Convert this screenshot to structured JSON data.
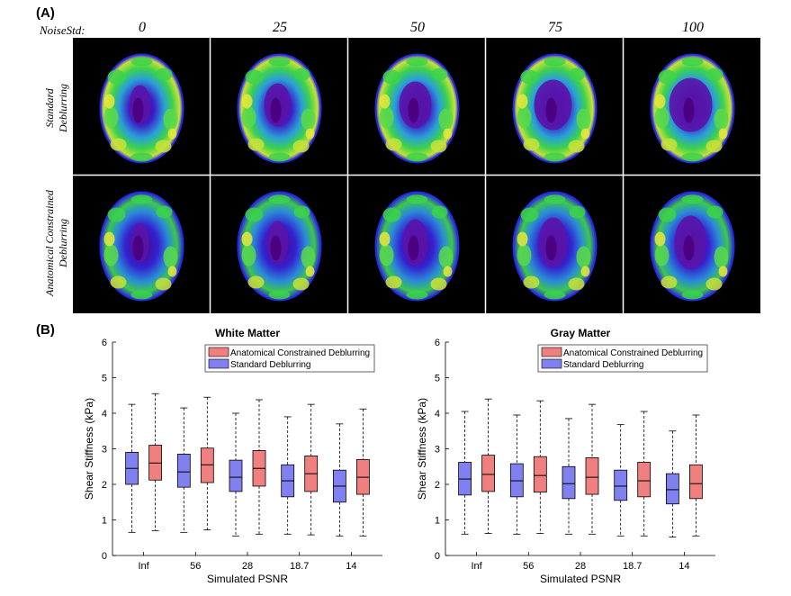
{
  "panel_a_label": "(A)",
  "panel_b_label": "(B)",
  "noise_label": "NoiseStd:",
  "noise_levels": [
    "0",
    "25",
    "50",
    "75",
    "100"
  ],
  "row_labels": [
    {
      "line1": "Standard",
      "line2": "Deblurring"
    },
    {
      "line1": "Anatomical Constrained",
      "line2": "Deblurring"
    }
  ],
  "colors": {
    "acd_fill": "#f08080",
    "std_fill": "#8080f0",
    "median": "#000000",
    "brain_low": "#4b0082",
    "brain_mid": "#2a2ae0",
    "brain_high": "#3cd24a",
    "brain_peak": "#e8e83a"
  },
  "chart_data": [
    {
      "type": "box",
      "title": "White Matter",
      "xlabel": "Simulated PSNR",
      "ylabel": "Shear Stiffness (kPa)",
      "ylim": [
        0,
        6
      ],
      "yticks": [
        0,
        1,
        2,
        3,
        4,
        5,
        6
      ],
      "categories": [
        "Inf",
        "56",
        "28",
        "18.7",
        "14"
      ],
      "legend": [
        "Anatomical Constrained Deblurring",
        "Standard Deblurring"
      ],
      "legend_position": "top-right",
      "series": [
        {
          "name": "Standard Deblurring",
          "boxes": [
            {
              "min": 0.65,
              "q1": 2.0,
              "median": 2.45,
              "q3": 2.9,
              "max": 4.25
            },
            {
              "min": 0.65,
              "q1": 1.92,
              "median": 2.35,
              "q3": 2.85,
              "max": 4.15
            },
            {
              "min": 0.55,
              "q1": 1.8,
              "median": 2.2,
              "q3": 2.68,
              "max": 4.0
            },
            {
              "min": 0.6,
              "q1": 1.65,
              "median": 2.1,
              "q3": 2.55,
              "max": 3.9
            },
            {
              "min": 0.55,
              "q1": 1.5,
              "median": 1.95,
              "q3": 2.4,
              "max": 3.7
            }
          ]
        },
        {
          "name": "Anatomical Constrained Deblurring",
          "boxes": [
            {
              "min": 0.7,
              "q1": 2.12,
              "median": 2.6,
              "q3": 3.1,
              "max": 4.55
            },
            {
              "min": 0.72,
              "q1": 2.05,
              "median": 2.55,
              "q3": 3.02,
              "max": 4.45
            },
            {
              "min": 0.6,
              "q1": 1.95,
              "median": 2.45,
              "q3": 2.95,
              "max": 4.38
            },
            {
              "min": 0.58,
              "q1": 1.8,
              "median": 2.3,
              "q3": 2.8,
              "max": 4.25
            },
            {
              "min": 0.55,
              "q1": 1.72,
              "median": 2.2,
              "q3": 2.7,
              "max": 4.12
            }
          ]
        }
      ]
    },
    {
      "type": "box",
      "title": "Gray Matter",
      "xlabel": "Simulated PSNR",
      "ylabel": "Shear Stiffness (kPa)",
      "ylim": [
        0,
        6
      ],
      "yticks": [
        0,
        1,
        2,
        3,
        4,
        5,
        6
      ],
      "categories": [
        "Inf",
        "56",
        "28",
        "18.7",
        "14"
      ],
      "legend": [
        "Anatomical Constrained Deblurring",
        "Standard Deblurring"
      ],
      "legend_position": "top-right",
      "series": [
        {
          "name": "Standard Deblurring",
          "boxes": [
            {
              "min": 0.6,
              "q1": 1.7,
              "median": 2.15,
              "q3": 2.62,
              "max": 4.05
            },
            {
              "min": 0.6,
              "q1": 1.65,
              "median": 2.1,
              "q3": 2.58,
              "max": 3.95
            },
            {
              "min": 0.6,
              "q1": 1.6,
              "median": 2.02,
              "q3": 2.5,
              "max": 3.85
            },
            {
              "min": 0.55,
              "q1": 1.55,
              "median": 1.95,
              "q3": 2.4,
              "max": 3.68
            },
            {
              "min": 0.52,
              "q1": 1.45,
              "median": 1.85,
              "q3": 2.3,
              "max": 3.5
            }
          ]
        },
        {
          "name": "Anatomical Constrained Deblurring",
          "boxes": [
            {
              "min": 0.62,
              "q1": 1.8,
              "median": 2.28,
              "q3": 2.82,
              "max": 4.4
            },
            {
              "min": 0.62,
              "q1": 1.78,
              "median": 2.25,
              "q3": 2.78,
              "max": 4.35
            },
            {
              "min": 0.6,
              "q1": 1.72,
              "median": 2.2,
              "q3": 2.75,
              "max": 4.25
            },
            {
              "min": 0.55,
              "q1": 1.65,
              "median": 2.1,
              "q3": 2.62,
              "max": 4.05
            },
            {
              "min": 0.55,
              "q1": 1.6,
              "median": 2.02,
              "q3": 2.55,
              "max": 3.95
            }
          ]
        }
      ]
    }
  ]
}
